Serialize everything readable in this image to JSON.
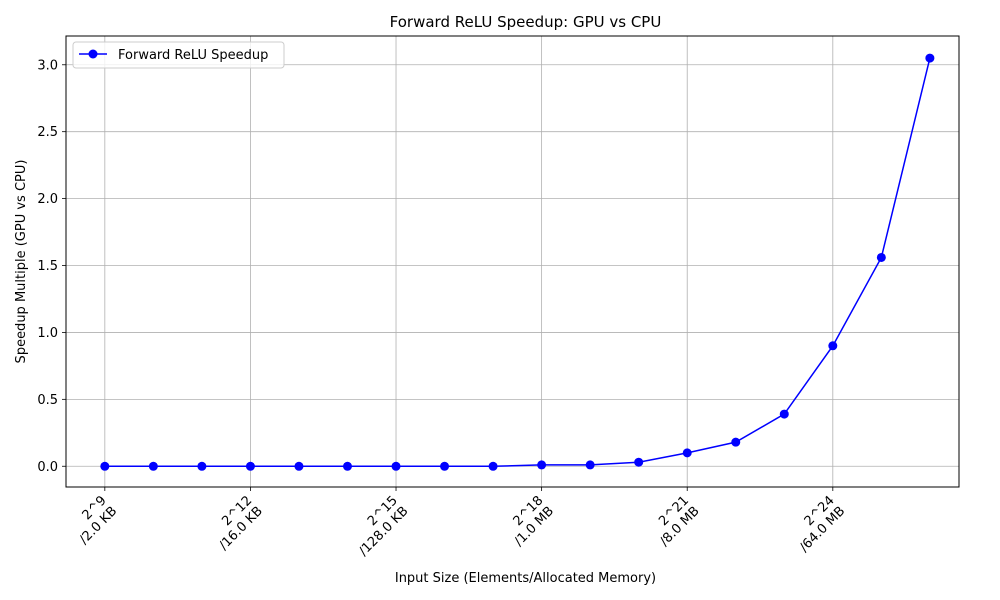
{
  "chart_data": {
    "type": "line",
    "title": "Forward ReLU Speedup: GPU vs CPU",
    "xlabel": "Input Size (Elements/Allocated Memory)",
    "ylabel": "Speedup Multiple (GPU vs CPU)",
    "x_exponents": [
      9,
      10,
      11,
      12,
      13,
      14,
      15,
      16,
      17,
      18,
      19,
      20,
      21,
      22,
      23,
      24,
      25,
      26
    ],
    "x_ticks": [
      {
        "exponent": 9,
        "line1": "2^9",
        "line2": "/2.0 KB"
      },
      {
        "exponent": 12,
        "line1": "2^12",
        "line2": "/16.0 KB"
      },
      {
        "exponent": 15,
        "line1": "2^15",
        "line2": "/128.0 KB"
      },
      {
        "exponent": 18,
        "line1": "2^18",
        "line2": "/1.0 MB"
      },
      {
        "exponent": 21,
        "line1": "2^21",
        "line2": "/8.0 MB"
      },
      {
        "exponent": 24,
        "line1": "2^24",
        "line2": "/64.0 MB"
      }
    ],
    "xlim": [
      8.2,
      26.6
    ],
    "ylim": [
      -0.155,
      3.215
    ],
    "y_ticks": [
      0.0,
      0.5,
      1.0,
      1.5,
      2.0,
      2.5,
      3.0
    ],
    "y_tick_labels": [
      "0.0",
      "0.5",
      "1.0",
      "1.5",
      "2.0",
      "2.5",
      "3.0"
    ],
    "grid": true,
    "legend_position": "top-left",
    "series": [
      {
        "name": "Forward ReLU Speedup",
        "color": "#0000ff",
        "values": [
          0.0,
          0.0,
          0.0,
          0.0,
          0.0,
          0.0,
          0.0,
          0.0,
          0.0,
          0.01,
          0.01,
          0.03,
          0.1,
          0.18,
          0.39,
          0.9,
          1.56,
          3.05
        ]
      }
    ]
  }
}
